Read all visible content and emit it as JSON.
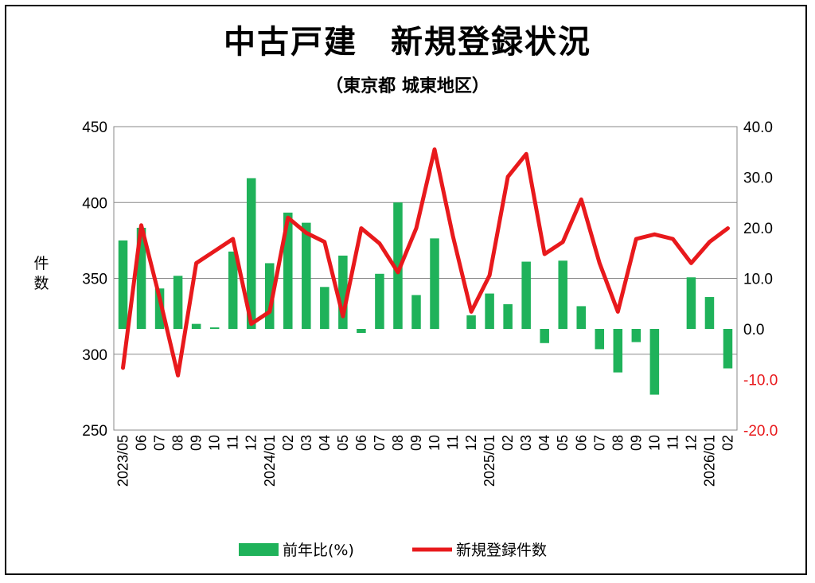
{
  "title": "中古戸建　新規登録状況",
  "subtitle": "（東京都 城東地区）",
  "chart_data": {
    "type": "bar+line",
    "categories": [
      "2023/05",
      "06",
      "07",
      "08",
      "09",
      "10",
      "11",
      "12",
      "2024/01",
      "02",
      "03",
      "04",
      "05",
      "06",
      "07",
      "08",
      "09",
      "10",
      "11",
      "12",
      "2025/01",
      "02",
      "03",
      "04",
      "05",
      "06",
      "07",
      "08",
      "09",
      "10",
      "11",
      "12",
      "2026/01",
      "02"
    ],
    "ylabel_left": "件\n数",
    "ylim_left": [
      250,
      450
    ],
    "yticks_left": [
      "450",
      "400",
      "350",
      "300",
      "250"
    ],
    "ylim_right": [
      -20,
      40
    ],
    "yticks_right": [
      "40.0",
      "30.0",
      "20.0",
      "10.0",
      "0.0",
      "-10.0",
      "-20.0"
    ],
    "series": [
      {
        "name": "前年比(%)",
        "type": "bar",
        "axis": "right",
        "color": "#1fb25a",
        "values": [
          17.5,
          20.0,
          8.0,
          10.5,
          1.0,
          0.3,
          15.3,
          29.8,
          13.0,
          23.0,
          21.0,
          8.3,
          14.5,
          -0.8,
          10.9,
          25.0,
          6.7,
          17.9,
          null,
          2.7,
          7.0,
          4.9,
          13.3,
          -2.8,
          13.5,
          4.5,
          -4.0,
          -8.6,
          -2.6,
          -13.0,
          null,
          10.2,
          6.3,
          -7.8
        ]
      },
      {
        "name": "新規登録件数",
        "type": "line",
        "axis": "left",
        "color": "#e8191c",
        "values": [
          291,
          385,
          337,
          286,
          360,
          368,
          376,
          320,
          328,
          390,
          380,
          374,
          325,
          383,
          373,
          354,
          383,
          435,
          378,
          328,
          352,
          417,
          432,
          366,
          374,
          402,
          360,
          328,
          376,
          379,
          376,
          360,
          374,
          383
        ]
      }
    ],
    "legend_position": "bottom",
    "grid": "horizontal"
  },
  "colors": {
    "bar": "#1fb25a",
    "line": "#e8191c",
    "right_axis_text": "#e8191c"
  }
}
